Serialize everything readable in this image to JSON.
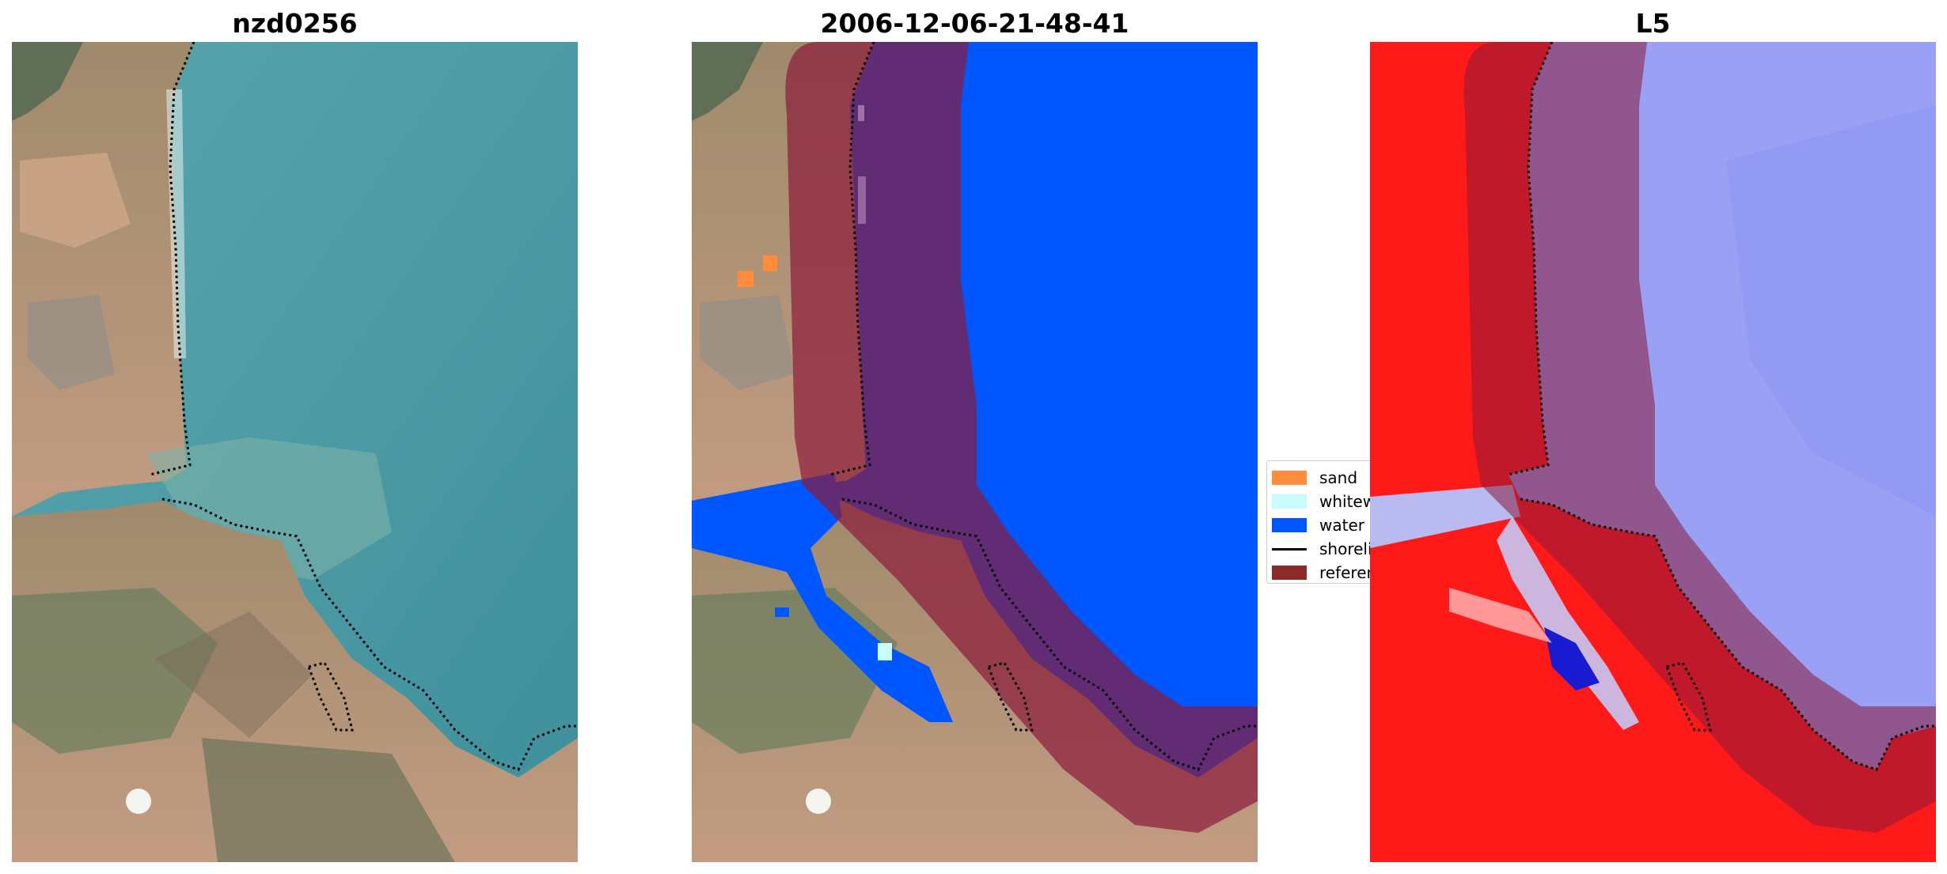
{
  "panels": [
    {
      "title": "nzd0256"
    },
    {
      "title": "2006-12-06-21-48-41"
    },
    {
      "title": "L5"
    }
  ],
  "legend": {
    "items": [
      {
        "label": "sand",
        "color": "#ff8c3a",
        "kind": "patch"
      },
      {
        "label": "whitewater",
        "color": "#c8fbfb",
        "kind": "patch"
      },
      {
        "label": "water",
        "color": "#0057ff",
        "kind": "patch"
      },
      {
        "label": "shoreline",
        "color": "#000000",
        "kind": "line"
      },
      {
        "label": "reference",
        "color": "#8b2a2a",
        "kind": "patch"
      }
    ]
  },
  "colors": {
    "ocean": "#4e9aa3",
    "land": "#b99a80",
    "vegetation": "#6d7f5e",
    "water_class": "#0057ff",
    "reference_overlay": "#8b1a3a",
    "sea_index": "#9aa0f4",
    "land_index": "#ff1a1a"
  }
}
